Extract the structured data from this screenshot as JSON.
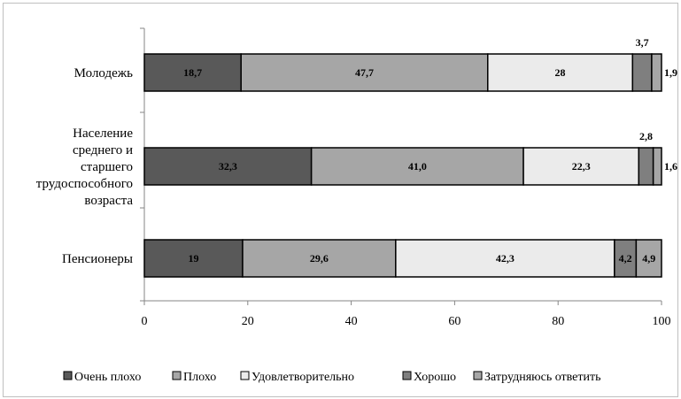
{
  "chart_data": {
    "type": "bar",
    "orientation": "horizontal",
    "stacked": true,
    "title": "",
    "xlabel": "",
    "ylabel": "",
    "xlim": [
      0,
      100
    ],
    "x_ticks": [
      "0",
      "20",
      "40",
      "60",
      "80",
      "100"
    ],
    "grid": false,
    "legend_position": "bottom",
    "categories": [
      [
        "Молодежь"
      ],
      [
        "Население",
        "среднего и",
        "старшего",
        "трудоспособного",
        "возраста"
      ],
      [
        "Пенсионеры"
      ]
    ],
    "series": [
      {
        "name": "Очень плохо",
        "color": "#595959",
        "values": [
          18.7,
          32.3,
          19
        ],
        "labels": [
          "18,7",
          "32,3",
          "19"
        ]
      },
      {
        "name": "Плохо",
        "color": "#a6a6a6",
        "values": [
          47.7,
          41.0,
          29.6
        ],
        "labels": [
          "47,7",
          "41,0",
          "29,6"
        ]
      },
      {
        "name": "Удовлетворительно",
        "color": "#ebebeb",
        "values": [
          28,
          22.3,
          42.3
        ],
        "labels": [
          "28",
          "22,3",
          "42,3"
        ]
      },
      {
        "name": "Хорошо",
        "color": "#7f7f7f",
        "values": [
          3.7,
          2.8,
          4.2
        ],
        "labels": [
          "3,7",
          "2,8",
          "4,2"
        ]
      },
      {
        "name": "Затрудняюсь ответить",
        "color": "#a6a6a6",
        "values": [
          1.9,
          1.6,
          4.9
        ],
        "labels": [
          "1,9",
          "1,6",
          "4,9"
        ]
      }
    ]
  }
}
